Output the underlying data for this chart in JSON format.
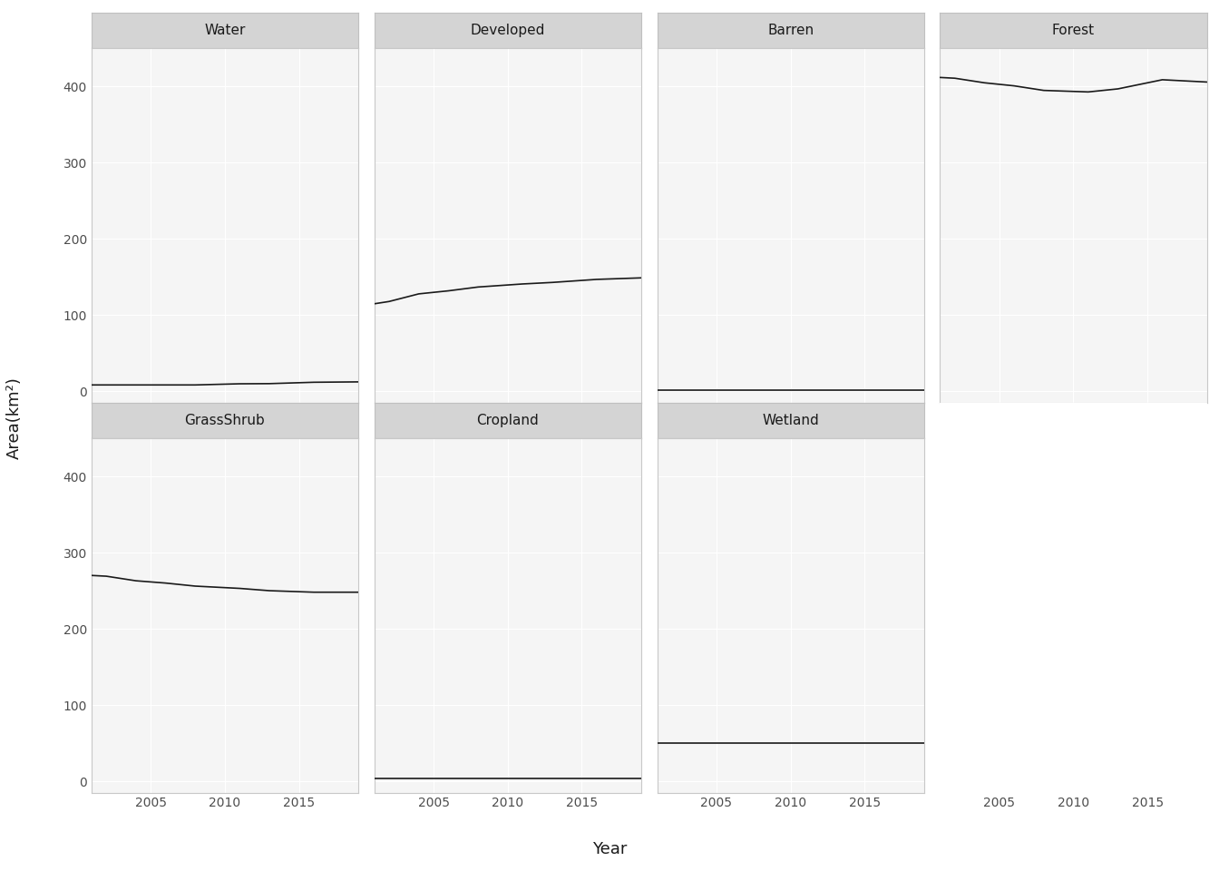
{
  "years": [
    2001,
    2002,
    2003,
    2004,
    2006,
    2008,
    2011,
    2013,
    2016,
    2019
  ],
  "series": {
    "Water": [
      8.5,
      8.5,
      8.5,
      8.5,
      8.5,
      8.5,
      10.0,
      10.2,
      12.0,
      12.5
    ],
    "Developed": [
      115,
      118,
      123,
      128,
      132,
      137,
      141,
      143,
      147,
      149
    ],
    "Barren": [
      2.0,
      2.0,
      2.0,
      2.0,
      2.0,
      2.0,
      2.0,
      2.0,
      2.0,
      2.0
    ],
    "Forest": [
      412,
      411,
      408,
      405,
      401,
      395,
      393,
      397,
      409,
      406
    ],
    "GrassShrub": [
      270,
      269,
      266,
      263,
      260,
      256,
      253,
      250,
      248,
      248
    ],
    "Cropland": [
      3.5,
      3.5,
      3.5,
      3.5,
      3.5,
      3.5,
      3.5,
      3.5,
      3.5,
      3.5
    ],
    "Wetland": [
      50,
      50,
      50,
      50,
      50,
      50,
      50,
      50,
      50,
      50
    ]
  },
  "panels_row0": [
    "Water",
    "Developed",
    "Barren",
    "Forest"
  ],
  "panels_row1": [
    "GrassShrub",
    "Cropland",
    "Wetland"
  ],
  "ylim": [
    -15,
    450
  ],
  "yticks": [
    0,
    100,
    200,
    300,
    400
  ],
  "xlim": [
    2001,
    2019
  ],
  "xticks": [
    2005,
    2010,
    2015
  ],
  "xlabel": "Year",
  "ylabel": "Area(km²)",
  "line_color": "#1a1a1a",
  "line_width": 1.2,
  "panel_bg": "#f5f5f5",
  "strip_bg": "#d4d4d4",
  "strip_border": "#c0c0c0",
  "grid_color": "#ffffff",
  "plot_border": "#c8c8c8",
  "axis_text_color": "#4d4d4d",
  "strip_text_size": 11,
  "axis_label_size": 13,
  "tick_label_size": 10,
  "strip_height_ratio": 0.12
}
